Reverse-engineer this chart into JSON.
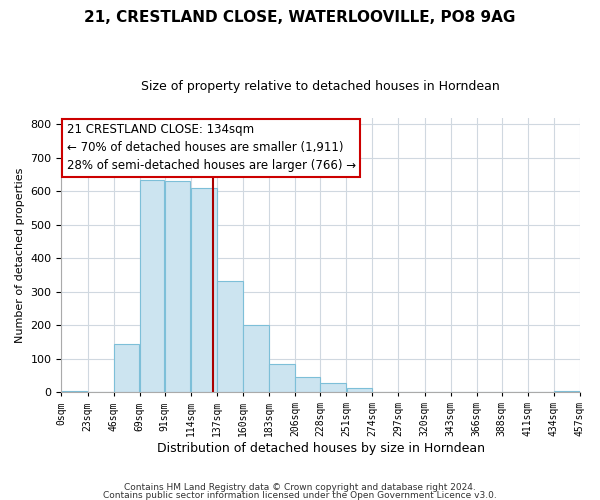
{
  "title": "21, CRESTLAND CLOSE, WATERLOOVILLE, PO8 9AG",
  "subtitle": "Size of property relative to detached houses in Horndean",
  "xlabel": "Distribution of detached houses by size in Horndean",
  "ylabel": "Number of detached properties",
  "bar_edges": [
    0,
    23,
    46,
    69,
    91,
    114,
    137,
    160,
    183,
    206,
    228,
    251,
    274,
    297,
    320,
    343,
    366,
    388,
    411,
    434,
    457
  ],
  "bar_heights": [
    2,
    0,
    143,
    635,
    632,
    610,
    333,
    200,
    84,
    46,
    27,
    12,
    0,
    0,
    0,
    0,
    0,
    0,
    0,
    3
  ],
  "tick_labels": [
    "0sqm",
    "23sqm",
    "46sqm",
    "69sqm",
    "91sqm",
    "114sqm",
    "137sqm",
    "160sqm",
    "183sqm",
    "206sqm",
    "228sqm",
    "251sqm",
    "274sqm",
    "297sqm",
    "320sqm",
    "343sqm",
    "366sqm",
    "388sqm",
    "411sqm",
    "434sqm",
    "457sqm"
  ],
  "bar_color": "#cce4f0",
  "bar_edge_color": "#7dbfd8",
  "property_line_x": 134,
  "property_line_color": "#aa0000",
  "annotation_line1": "21 CRESTLAND CLOSE: 134sqm",
  "annotation_line2": "← 70% of detached houses are smaller (1,911)",
  "annotation_line3": "28% of semi-detached houses are larger (766) →",
  "ylim": [
    0,
    820
  ],
  "footer1": "Contains HM Land Registry data © Crown copyright and database right 2024.",
  "footer2": "Contains public sector information licensed under the Open Government Licence v3.0.",
  "background_color": "#ffffff",
  "grid_color": "#d0d8e0",
  "title_fontsize": 11,
  "subtitle_fontsize": 9
}
